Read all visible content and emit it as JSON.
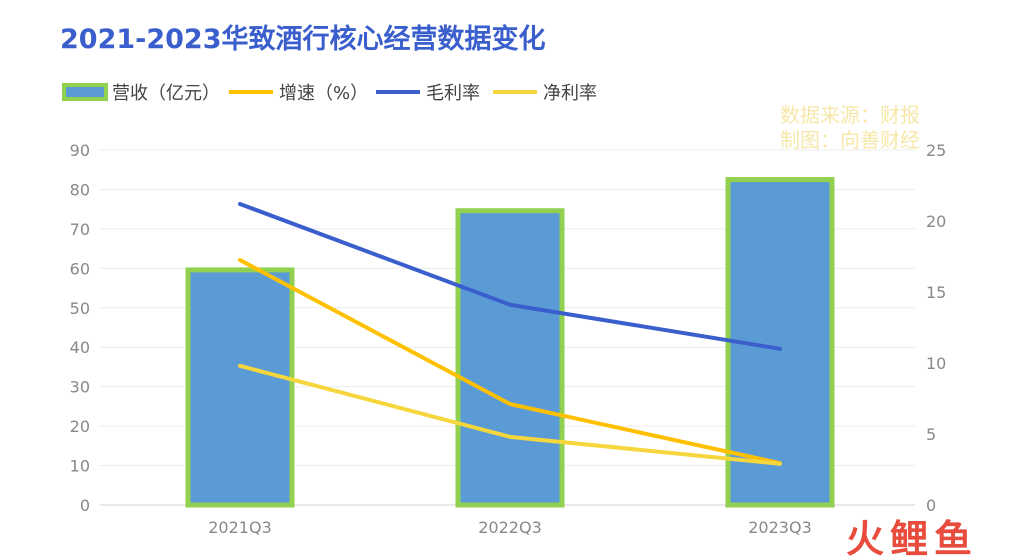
{
  "chart_data": {
    "type": "bar",
    "title": "2021-2023华致酒行核心经营数据变化",
    "categories": [
      "2021Q3",
      "2022Q3",
      "2023Q3"
    ],
    "series": [
      {
        "name": "营收（亿元）",
        "kind": "bar",
        "axis": "left",
        "color": "#5b9bd5",
        "border": "#92d050",
        "values": [
          59.6,
          74.6,
          82.5
        ]
      },
      {
        "name": "增速（%）",
        "kind": "line",
        "axis": "left",
        "color": "#ffc000",
        "values": [
          62.1,
          25.6,
          10.6
        ]
      },
      {
        "name": "毛利率",
        "kind": "line",
        "axis": "right",
        "color": "#3a5fcd",
        "values": [
          21.2,
          14.1,
          11.0
        ]
      },
      {
        "name": "净利率",
        "kind": "line",
        "axis": "right",
        "color": "#f5d63c",
        "values": [
          9.8,
          4.8,
          2.9
        ]
      }
    ],
    "left_axis": {
      "ylim": [
        0,
        90
      ],
      "ticks": [
        0,
        10,
        20,
        30,
        40,
        50,
        60,
        70,
        80,
        90
      ]
    },
    "right_axis": {
      "ylim": [
        0,
        25
      ],
      "ticks": [
        0,
        5,
        10,
        15,
        20,
        25
      ]
    },
    "grid": true,
    "legend_position": "top-left"
  },
  "watermark": {
    "lines": [
      "数据来源：财报",
      "制图：向善财经"
    ],
    "logo": "火鲤鱼"
  }
}
